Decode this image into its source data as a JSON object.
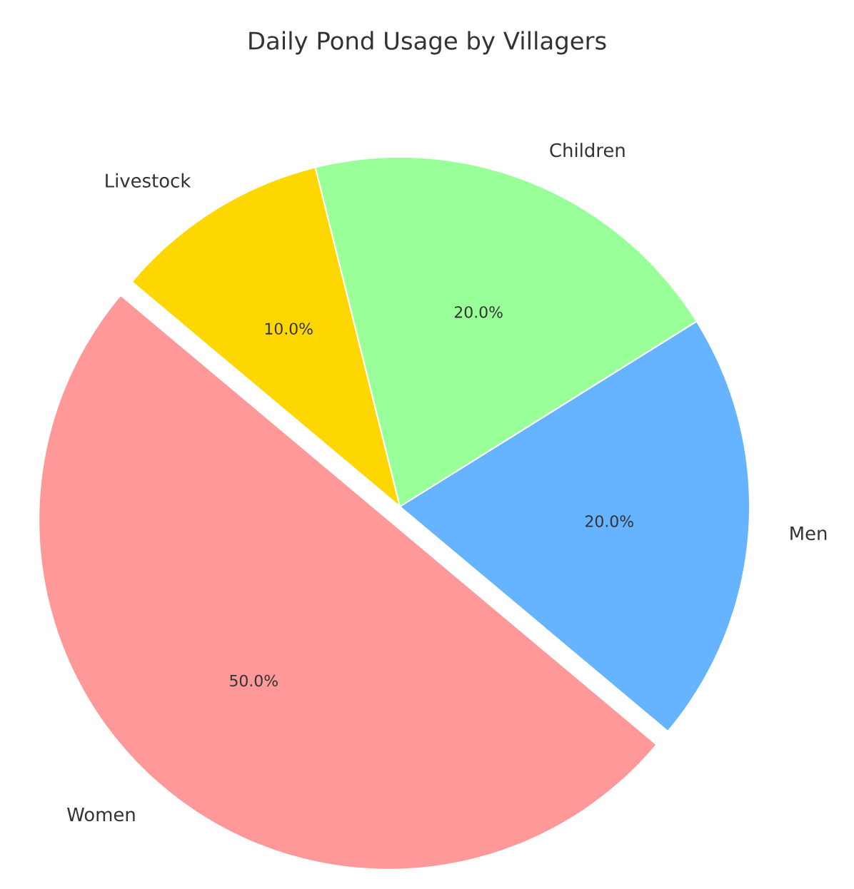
{
  "chart_data": {
    "type": "pie",
    "title": "Daily Pond Usage by Villagers",
    "categories": [
      "Women",
      "Men",
      "Children",
      "Livestock"
    ],
    "values": [
      50,
      20,
      20,
      10
    ],
    "colors": [
      "#ff9999",
      "#66b3ff",
      "#99ff99",
      "#ffd700"
    ],
    "value_labels": [
      "50.0%",
      "20.0%",
      "20.0%",
      "10.0%"
    ]
  }
}
